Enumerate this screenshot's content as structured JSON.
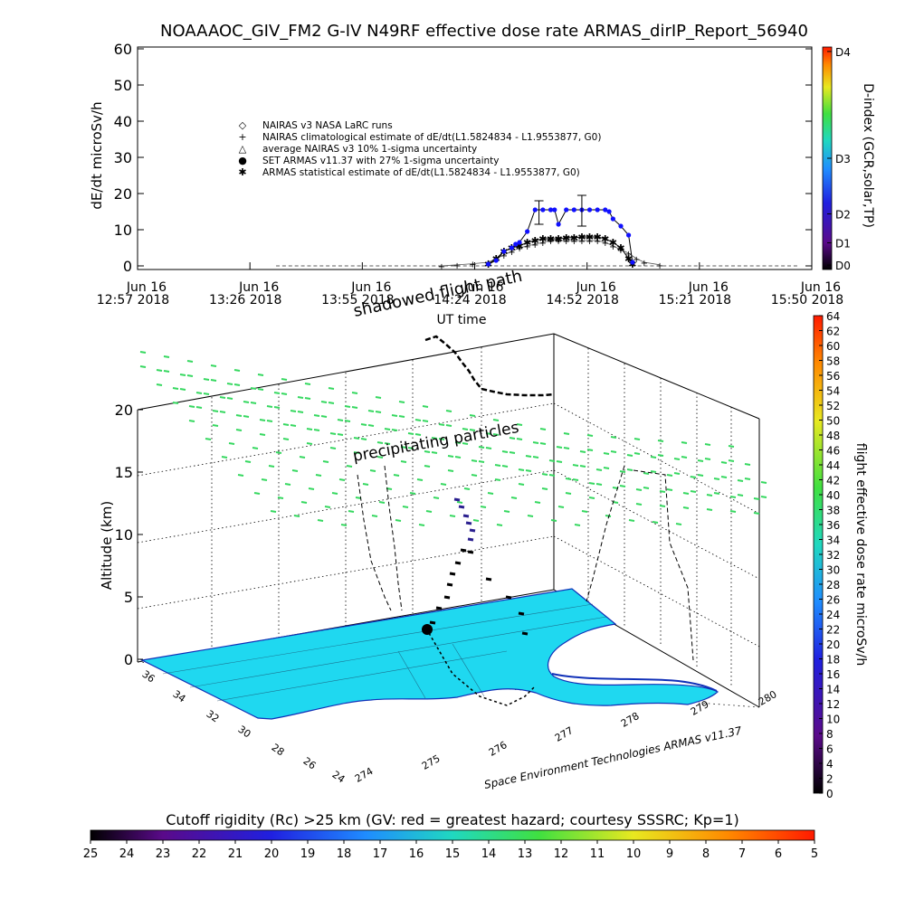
{
  "title": "NOAAAOC_GIV_FM2 G-IV   N49RF  effective dose rate ARMAS_dirIP_Report_56940",
  "chart_data": [
    {
      "type": "line",
      "ylabel": "dE/dt microSv/h",
      "xlabel": "UT time",
      "ylim": [
        0,
        60
      ],
      "yticks": [
        "0",
        "10",
        "20",
        "30",
        "40",
        "50",
        "60"
      ],
      "xticks": [
        {
          "top": "Jun 16",
          "bottom": "12:57 2018"
        },
        {
          "top": "Jun 16",
          "bottom": "13:26 2018"
        },
        {
          "top": "Jun 16",
          "bottom": "13:55 2018"
        },
        {
          "top": "Jun 16",
          "bottom": "14:24 2018"
        },
        {
          "top": "Jun 16",
          "bottom": "14:52 2018"
        },
        {
          "top": "Jun 16",
          "bottom": "15:21 2018"
        },
        {
          "top": "Jun 16",
          "bottom": "15:50 2018"
        }
      ],
      "xlim_minutes": [
        0,
        173
      ],
      "legend": [
        {
          "symbol": "◇",
          "label": "NAIRAS v3 NASA LaRC runs"
        },
        {
          "symbol": "+",
          "label": "NAIRAS climatological estimate of dE/dt(L1.5824834 - L1.9553877, G0)"
        },
        {
          "symbol": "△",
          "label": "average NAIRAS v3 10% 1-sigma uncertainty"
        },
        {
          "symbol": "●",
          "label": "SET ARMAS v11.37 with 27% 1-sigma uncertainty",
          "color": "#1010ff"
        },
        {
          "symbol": "✱",
          "label": "ARMAS statistical estimate of dE/dt(L1.5824834 - L1.9553877, G0)"
        }
      ],
      "series": [
        {
          "name": "SET ARMAS v11.37 with 27% 1-sigma uncertainty",
          "x": [
            90,
            92,
            94,
            96,
            97,
            98,
            100,
            102,
            104,
            106,
            107,
            108,
            110,
            112,
            114,
            116,
            118,
            120,
            121,
            122,
            124,
            126,
            127
          ],
          "y": [
            0.5,
            1.5,
            4,
            5,
            6,
            6.5,
            9.5,
            15.5,
            15.5,
            15.5,
            15.5,
            11.5,
            15.5,
            15.5,
            15.5,
            15.5,
            15.5,
            15.5,
            15,
            13,
            11,
            8.5,
            1
          ]
        },
        {
          "name": "ARMAS statistical estimate of dE/dt(L1.5824834 - L1.9553877, G0)",
          "x": [
            90,
            92,
            94,
            96,
            98,
            100,
            102,
            104,
            106,
            108,
            110,
            112,
            114,
            116,
            118,
            120,
            122,
            124,
            126,
            127
          ],
          "y": [
            0.5,
            2,
            4,
            5,
            5.5,
            6.5,
            7,
            7.5,
            7.5,
            7.5,
            7.8,
            7.8,
            8,
            8,
            8,
            7.5,
            6.5,
            5,
            2,
            0.5
          ]
        },
        {
          "name": "NAIRAS climatological estimate of dE/dt(L1.5824834 - L1.9553877, G0)",
          "x": [
            78,
            82,
            86,
            90,
            92,
            94,
            96,
            98,
            100,
            102,
            104,
            106,
            108,
            110,
            112,
            114,
            116,
            118,
            120,
            122,
            124,
            126,
            128,
            130,
            134
          ],
          "y": [
            0,
            0.3,
            0.6,
            1,
            2,
            3,
            4,
            5,
            5.5,
            6,
            6.5,
            7,
            7,
            7,
            7,
            7,
            7,
            7,
            6.5,
            5.5,
            4.5,
            3.5,
            2,
            1,
            0.3
          ]
        }
      ],
      "errorbars": [
        {
          "x": 103,
          "y": 15.5,
          "lo": 11.5,
          "hi": 18
        },
        {
          "x": 114,
          "y": 15.5,
          "lo": 11,
          "hi": 19.5
        }
      ],
      "right_axis": {
        "label": "D-index (GCR,solar,TP)",
        "ticks": [
          "D0",
          "D1",
          "D2",
          "D3",
          "D4"
        ]
      }
    },
    {
      "type": "scatter",
      "zlabel": "Altitude (km)",
      "zticks": [
        "0",
        "5",
        "10",
        "15",
        "20"
      ],
      "lat_ticks": [
        "24",
        "26",
        "28",
        "30",
        "32",
        "34",
        "36"
      ],
      "lon_ticks": [
        "274",
        "275",
        "276",
        "277",
        "278",
        "279",
        "280"
      ],
      "annotations": [
        "shadowed flight path",
        "precipitating particles"
      ],
      "credit": "Space Environment Technologies ARMAS v11.37",
      "right_colorbar": {
        "label": "flight effective dose rate microSv/h",
        "ticks": [
          "0",
          "2",
          "4",
          "6",
          "8",
          "10",
          "12",
          "14",
          "16",
          "18",
          "20",
          "22",
          "24",
          "26",
          "28",
          "30",
          "32",
          "34",
          "36",
          "38",
          "40",
          "42",
          "44",
          "46",
          "48",
          "50",
          "52",
          "54",
          "56",
          "58",
          "60",
          "62",
          "64"
        ]
      }
    }
  ],
  "bottom_colorbar": {
    "label": "Cutoff rigidity (Rc) >25 km (GV: red = greatest hazard; courtesy SSSRC; Kp=1)",
    "ticks": [
      "25",
      "24",
      "23",
      "22",
      "21",
      "20",
      "19",
      "18",
      "17",
      "16",
      "15",
      "14",
      "13",
      "12",
      "11",
      "10",
      "9",
      "8",
      "7",
      "6",
      "5"
    ]
  },
  "colors": {
    "armas": "#1010ff",
    "precip": "#36d860",
    "map_fill": "#1fd8f0",
    "coast": "#1030b8"
  }
}
